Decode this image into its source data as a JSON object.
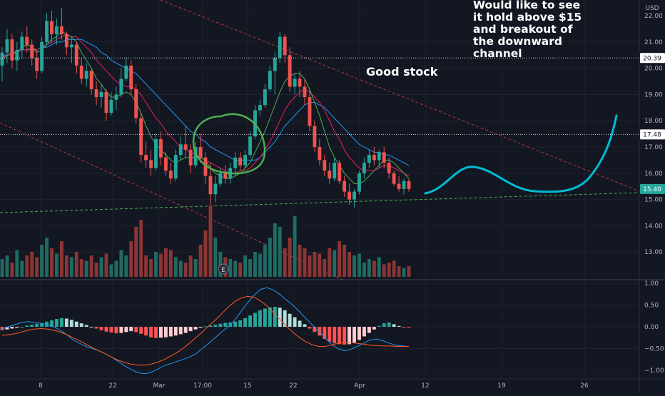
{
  "currency_label": "USD",
  "price_axis": {
    "ticks": [
      "22.00",
      "21.00",
      "20.00",
      "19.00",
      "18.00",
      "17.00",
      "16.00",
      "15.00",
      "14.00",
      "13.00"
    ],
    "tick_values": [
      22,
      21,
      20,
      19,
      18,
      17,
      16,
      15,
      14,
      13
    ],
    "range": [
      12.0,
      22.6
    ]
  },
  "macd_axis": {
    "ticks": [
      "1.00",
      "0.50",
      "0.00",
      "−0.50",
      "−1.00"
    ],
    "tick_values": [
      1.0,
      0.5,
      0.0,
      -0.5,
      -1.0
    ],
    "range": [
      -1.18,
      1.05
    ]
  },
  "price_markers": [
    {
      "label": "20.39",
      "value": 20.39,
      "style": "level"
    },
    {
      "label": "17.48",
      "value": 17.48,
      "style": "level"
    },
    {
      "label": "15.40",
      "value": 15.4,
      "style": "last"
    }
  ],
  "time_axis": [
    "8",
    "22",
    "Mar",
    "17:00",
    "15",
    "22",
    "Apr",
    "12",
    "19",
    "26"
  ],
  "annotations": {
    "note": [
      "Would like to see",
      "it hold above $15",
      "and breakout of",
      "the downward",
      "channel"
    ],
    "good_stock": "Good stock",
    "earnings_marker": "E"
  },
  "colors": {
    "up": "#26a69a",
    "down": "#ef5350",
    "ma_fast": "#4caf50",
    "ma_mid": "#e91e63",
    "ma_slow": "#2196f3",
    "drawing": "#00bcd4",
    "circle": "#4caf50",
    "macd_line": "#2196f3",
    "signal_line": "#ff5722"
  },
  "chart_data": {
    "type": "candlestick",
    "ohlc": [
      [
        20.1,
        20.8,
        19.5,
        20.6
      ],
      [
        20.6,
        21.5,
        20.2,
        21.1
      ],
      [
        21.1,
        21.3,
        20.0,
        20.3
      ],
      [
        20.3,
        21.0,
        19.9,
        20.7
      ],
      [
        20.7,
        21.4,
        20.4,
        21.2
      ],
      [
        21.2,
        21.6,
        20.6,
        20.9
      ],
      [
        20.9,
        21.1,
        20.1,
        20.4
      ],
      [
        20.4,
        20.7,
        19.6,
        19.9
      ],
      [
        19.9,
        21.2,
        19.8,
        21.0
      ],
      [
        21.0,
        22.1,
        20.9,
        21.8
      ],
      [
        21.8,
        22.2,
        21.0,
        21.3
      ],
      [
        21.3,
        21.9,
        20.9,
        21.6
      ],
      [
        21.6,
        22.3,
        21.1,
        21.3
      ],
      [
        21.3,
        21.4,
        20.5,
        20.8
      ],
      [
        20.8,
        21.2,
        20.2,
        20.9
      ],
      [
        20.9,
        21.0,
        19.8,
        20.1
      ],
      [
        20.1,
        20.4,
        19.4,
        19.6
      ],
      [
        19.6,
        20.2,
        19.3,
        19.9
      ],
      [
        19.9,
        20.0,
        19.0,
        19.2
      ],
      [
        19.2,
        19.5,
        18.6,
        18.9
      ],
      [
        18.9,
        19.4,
        18.5,
        19.1
      ],
      [
        19.1,
        19.2,
        18.0,
        18.3
      ],
      [
        18.3,
        19.1,
        18.2,
        18.8
      ],
      [
        18.8,
        19.3,
        18.4,
        19.0
      ],
      [
        19.0,
        20.0,
        18.9,
        19.6
      ],
      [
        19.6,
        20.4,
        19.5,
        20.1
      ],
      [
        20.1,
        20.3,
        19.0,
        19.2
      ],
      [
        19.2,
        19.4,
        17.9,
        18.1
      ],
      [
        18.1,
        18.3,
        16.4,
        16.7
      ],
      [
        16.7,
        17.2,
        16.2,
        16.5
      ],
      [
        16.5,
        16.9,
        15.9,
        16.2
      ],
      [
        16.2,
        17.5,
        16.1,
        17.3
      ],
      [
        17.3,
        17.6,
        16.3,
        16.6
      ],
      [
        16.6,
        16.8,
        15.9,
        16.1
      ],
      [
        16.1,
        16.4,
        15.6,
        15.8
      ],
      [
        15.8,
        16.9,
        15.7,
        16.7
      ],
      [
        16.7,
        17.4,
        16.5,
        17.1
      ],
      [
        17.1,
        17.8,
        16.6,
        16.9
      ],
      [
        16.9,
        17.1,
        16.0,
        16.3
      ],
      [
        16.3,
        17.2,
        16.2,
        17.0
      ],
      [
        17.0,
        17.5,
        16.4,
        16.6
      ],
      [
        16.6,
        16.8,
        15.6,
        15.9
      ],
      [
        15.9,
        16.4,
        14.8,
        15.2
      ],
      [
        15.2,
        15.9,
        14.9,
        15.6
      ],
      [
        15.6,
        16.2,
        15.5,
        16.0
      ],
      [
        16.0,
        16.3,
        15.6,
        15.8
      ],
      [
        15.8,
        16.4,
        15.6,
        16.2
      ],
      [
        16.2,
        16.8,
        15.9,
        16.6
      ],
      [
        16.6,
        16.8,
        16.1,
        16.3
      ],
      [
        16.3,
        16.9,
        16.2,
        16.7
      ],
      [
        16.7,
        17.6,
        16.6,
        17.4
      ],
      [
        17.4,
        18.6,
        17.3,
        18.4
      ],
      [
        18.4,
        18.8,
        18.2,
        18.6
      ],
      [
        18.6,
        19.4,
        18.5,
        19.2
      ],
      [
        19.2,
        20.1,
        19.1,
        19.9
      ],
      [
        19.9,
        20.6,
        19.0,
        20.4
      ],
      [
        20.4,
        21.4,
        20.2,
        21.2
      ],
      [
        21.2,
        21.3,
        20.2,
        20.5
      ],
      [
        20.5,
        20.8,
        19.1,
        19.3
      ],
      [
        19.3,
        19.8,
        19.0,
        19.6
      ],
      [
        19.6,
        19.9,
        18.9,
        19.3
      ],
      [
        19.3,
        19.6,
        18.6,
        18.9
      ],
      [
        18.9,
        19.2,
        17.6,
        17.8
      ],
      [
        17.8,
        18.0,
        16.8,
        17.0
      ],
      [
        17.0,
        17.3,
        16.3,
        16.5
      ],
      [
        16.5,
        16.7,
        15.9,
        16.1
      ],
      [
        16.1,
        16.4,
        15.6,
        15.8
      ],
      [
        15.8,
        16.6,
        15.7,
        16.4
      ],
      [
        16.4,
        16.5,
        15.6,
        15.7
      ],
      [
        15.7,
        15.9,
        15.1,
        15.3
      ],
      [
        15.3,
        15.6,
        14.8,
        15.0
      ],
      [
        15.0,
        15.4,
        14.7,
        15.3
      ],
      [
        15.3,
        16.1,
        15.2,
        16.0
      ],
      [
        16.0,
        16.6,
        15.8,
        16.4
      ],
      [
        16.4,
        16.9,
        16.2,
        16.7
      ],
      [
        16.7,
        17.0,
        16.3,
        16.5
      ],
      [
        16.5,
        16.9,
        16.2,
        16.8
      ],
      [
        16.8,
        17.0,
        16.2,
        16.4
      ],
      [
        16.4,
        16.6,
        15.8,
        16.0
      ],
      [
        16.0,
        16.1,
        15.5,
        15.6
      ],
      [
        15.6,
        15.9,
        15.3,
        15.4
      ],
      [
        15.4,
        15.8,
        15.2,
        15.7
      ],
      [
        15.7,
        15.8,
        15.3,
        15.4
      ]
    ],
    "volume": [
      10,
      12,
      8,
      15,
      9,
      12,
      14,
      11,
      18,
      22,
      16,
      13,
      20,
      12,
      11,
      14,
      10,
      9,
      12,
      8,
      11,
      13,
      7,
      9,
      15,
      12,
      20,
      28,
      32,
      12,
      10,
      14,
      13,
      16,
      15,
      11,
      9,
      8,
      12,
      10,
      18,
      26,
      40,
      22,
      14,
      11,
      10,
      9,
      8,
      12,
      10,
      14,
      13,
      18,
      22,
      30,
      28,
      16,
      22,
      34,
      18,
      16,
      12,
      14,
      13,
      10,
      16,
      15,
      20,
      18,
      14,
      12,
      13,
      8,
      10,
      9,
      11,
      7,
      8,
      9,
      6,
      5,
      6
    ],
    "ma_fast": [
      20.3,
      20.5,
      20.6,
      20.6,
      20.8,
      20.9,
      20.8,
      20.6,
      20.7,
      20.9,
      21.1,
      21.2,
      21.4,
      21.3,
      21.2,
      21.0,
      20.6,
      20.3,
      20.0,
      19.6,
      19.4,
      19.1,
      18.9,
      18.9,
      19.0,
      19.1,
      19.0,
      18.7,
      18.3,
      17.8,
      17.4,
      17.1,
      16.9,
      16.7,
      16.5,
      16.4,
      16.5,
      16.6,
      16.6,
      16.6,
      16.6,
      16.5,
      16.2,
      16.0,
      15.9,
      15.8,
      15.8,
      15.9,
      16.0,
      16.2,
      16.4,
      16.8,
      17.2,
      17.6,
      18.1,
      18.6,
      19.1,
      19.5,
      19.7,
      19.8,
      19.8,
      19.6,
      19.2,
      18.7,
      18.2,
      17.6,
      17.0,
      16.6,
      16.3,
      16.0,
      15.8,
      15.6,
      15.6,
      15.7,
      15.9,
      16.1,
      16.3,
      16.5,
      16.5,
      16.4,
      16.2,
      16.0,
      15.8
    ],
    "ma_mid": [
      20.4,
      20.5,
      20.5,
      20.6,
      20.7,
      20.7,
      20.8,
      20.7,
      20.8,
      20.9,
      21.0,
      21.1,
      21.2,
      21.3,
      21.2,
      21.2,
      21.0,
      20.8,
      20.6,
      20.3,
      20.1,
      19.9,
      19.7,
      19.5,
      19.4,
      19.3,
      19.3,
      19.2,
      19.0,
      18.7,
      18.4,
      18.1,
      17.9,
      17.6,
      17.4,
      17.2,
      17.0,
      16.9,
      16.8,
      16.7,
      16.6,
      16.5,
      16.4,
      16.3,
      16.2,
      16.1,
      16.0,
      16.0,
      16.1,
      16.1,
      16.2,
      16.4,
      16.6,
      16.9,
      17.2,
      17.6,
      18.0,
      18.4,
      18.7,
      18.9,
      19.1,
      19.2,
      19.1,
      18.9,
      18.7,
      18.4,
      18.0,
      17.6,
      17.3,
      16.9,
      16.6,
      16.4,
      16.2,
      16.1,
      16.1,
      16.1,
      16.2,
      16.3,
      16.3,
      16.2,
      16.1,
      16.0,
      15.9
    ],
    "ma_slow": [
      20.5,
      20.5,
      20.6,
      20.6,
      20.7,
      20.7,
      20.7,
      20.7,
      20.8,
      20.8,
      20.9,
      21.0,
      21.0,
      21.1,
      21.1,
      21.1,
      21.1,
      21.0,
      20.9,
      20.8,
      20.6,
      20.5,
      20.3,
      20.2,
      20.1,
      20.0,
      19.9,
      19.8,
      19.6,
      19.4,
      19.2,
      19.0,
      18.8,
      18.6,
      18.4,
      18.2,
      18.0,
      17.8,
      17.6,
      17.5,
      17.3,
      17.2,
      17.0,
      16.9,
      16.8,
      16.7,
      16.6,
      16.5,
      16.5,
      16.5,
      16.5,
      16.5,
      16.6,
      16.8,
      17.0,
      17.2,
      17.5,
      17.8,
      18.0,
      18.2,
      18.4,
      18.6,
      18.7,
      18.7,
      18.6,
      18.5,
      18.3,
      18.1,
      17.9,
      17.7,
      17.5,
      17.3,
      17.1,
      17.0,
      16.9,
      16.8,
      16.8,
      16.7,
      16.7,
      16.6,
      16.5,
      16.4,
      16.3
    ],
    "macd_hist": [
      -0.08,
      -0.06,
      -0.04,
      -0.02,
      0.0,
      0.03,
      0.05,
      0.07,
      0.09,
      0.12,
      0.15,
      0.18,
      0.2,
      0.19,
      0.16,
      0.12,
      0.08,
      0.04,
      0.0,
      -0.04,
      -0.08,
      -0.11,
      -0.13,
      -0.15,
      -0.14,
      -0.12,
      -0.1,
      -0.12,
      -0.16,
      -0.2,
      -0.24,
      -0.26,
      -0.25,
      -0.24,
      -0.22,
      -0.2,
      -0.17,
      -0.14,
      -0.1,
      -0.06,
      -0.02,
      0.01,
      0.03,
      0.05,
      0.07,
      0.09,
      0.1,
      0.12,
      0.15,
      0.2,
      0.26,
      0.32,
      0.38,
      0.42,
      0.45,
      0.46,
      0.44,
      0.38,
      0.3,
      0.22,
      0.14,
      0.06,
      -0.04,
      -0.12,
      -0.2,
      -0.28,
      -0.34,
      -0.38,
      -0.4,
      -0.41,
      -0.4,
      -0.36,
      -0.3,
      -0.22,
      -0.14,
      -0.06,
      0.02,
      0.08,
      0.1,
      0.06,
      0.02,
      -0.01,
      -0.02
    ],
    "macd_line": [
      -0.05,
      0.0,
      0.05,
      0.1,
      0.12,
      0.1,
      0.08,
      0.05,
      0.0,
      -0.08,
      -0.18,
      -0.3,
      -0.38,
      -0.45,
      -0.5,
      -0.55,
      -0.62,
      -0.7,
      -0.8,
      -0.9,
      -0.98,
      -1.05,
      -1.08,
      -1.05,
      -0.98,
      -0.9,
      -0.85,
      -0.8,
      -0.75,
      -0.7,
      -0.62,
      -0.5,
      -0.38,
      -0.25,
      -0.12,
      0.0,
      0.15,
      0.35,
      0.55,
      0.72,
      0.86,
      0.9,
      0.85,
      0.75,
      0.62,
      0.5,
      0.36,
      0.2,
      0.05,
      -0.1,
      -0.25,
      -0.4,
      -0.5,
      -0.55,
      -0.52,
      -0.45,
      -0.38,
      -0.3,
      -0.28,
      -0.32,
      -0.38,
      -0.42,
      -0.44,
      -0.45
    ],
    "signal_line": [
      -0.2,
      -0.18,
      -0.16,
      -0.12,
      -0.08,
      -0.05,
      -0.04,
      -0.05,
      -0.08,
      -0.12,
      -0.18,
      -0.25,
      -0.32,
      -0.4,
      -0.48,
      -0.55,
      -0.62,
      -0.7,
      -0.77,
      -0.82,
      -0.86,
      -0.88,
      -0.88,
      -0.86,
      -0.82,
      -0.76,
      -0.68,
      -0.6,
      -0.5,
      -0.38,
      -0.25,
      -0.12,
      0.02,
      0.15,
      0.3,
      0.45,
      0.58,
      0.66,
      0.7,
      0.68,
      0.6,
      0.48,
      0.33,
      0.18,
      0.02,
      -0.12,
      -0.24,
      -0.34,
      -0.41,
      -0.45,
      -0.45,
      -0.42,
      -0.38,
      -0.36,
      -0.36,
      -0.38,
      -0.4,
      -0.42,
      -0.43,
      -0.44,
      -0.44,
      -0.45,
      -0.45,
      -0.45
    ]
  }
}
